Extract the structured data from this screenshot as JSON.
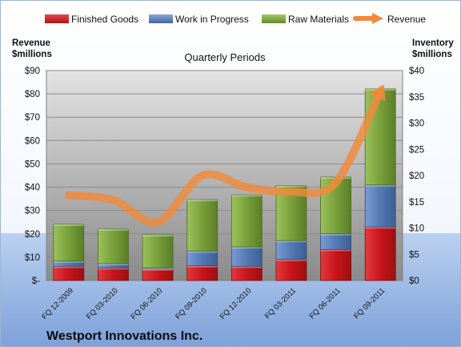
{
  "chart_data": {
    "type": "bar",
    "stacked": true,
    "subtitle": "Quarterly Periods",
    "company": "Westport Innovations Inc.",
    "left_axis_label": [
      "Revenue",
      "$millions"
    ],
    "right_axis_label": [
      "Inventory",
      "$millions"
    ],
    "categories": [
      "FQ 12-2009",
      "FQ 03-2010",
      "FQ 06-2010",
      "FQ 09-2010",
      "FQ 12-2010",
      "FQ 03-2011",
      "FQ 06-2011",
      "FQ 09-2011"
    ],
    "series": [
      {
        "name": "Finished Goods",
        "axis": "right",
        "color": "#c8151b",
        "values": [
          2.7,
          2.4,
          2.2,
          2.8,
          2.7,
          4.0,
          5.9,
          10.2
        ]
      },
      {
        "name": "Work in Progress",
        "axis": "right",
        "color": "#5379b4",
        "values": [
          1.0,
          0.8,
          0.2,
          2.8,
          3.7,
          3.6,
          3.0,
          8.0
        ]
      },
      {
        "name": "Raw Materials",
        "axis": "right",
        "color": "#78a03a",
        "values": [
          7.0,
          6.6,
          6.3,
          9.8,
          9.9,
          10.5,
          10.8,
          18.3
        ]
      },
      {
        "name": "Revenue",
        "axis": "left",
        "type": "line",
        "color": "#f08a3c",
        "values": [
          36.5,
          34.5,
          25,
          45,
          40,
          38,
          42,
          81
        ]
      }
    ],
    "left_axis": {
      "min": 0,
      "max": 90,
      "step": 10,
      "ticks": [
        "$-",
        "$10",
        "$20",
        "$30",
        "$40",
        "$50",
        "$60",
        "$70",
        "$80",
        "$90"
      ]
    },
    "right_axis": {
      "min": 0,
      "max": 40,
      "step": 5,
      "ticks": [
        "$0",
        "$5",
        "$10",
        "$15",
        "$20",
        "$25",
        "$30",
        "$35",
        "$40"
      ]
    },
    "grid": true,
    "legend_position": "top"
  }
}
